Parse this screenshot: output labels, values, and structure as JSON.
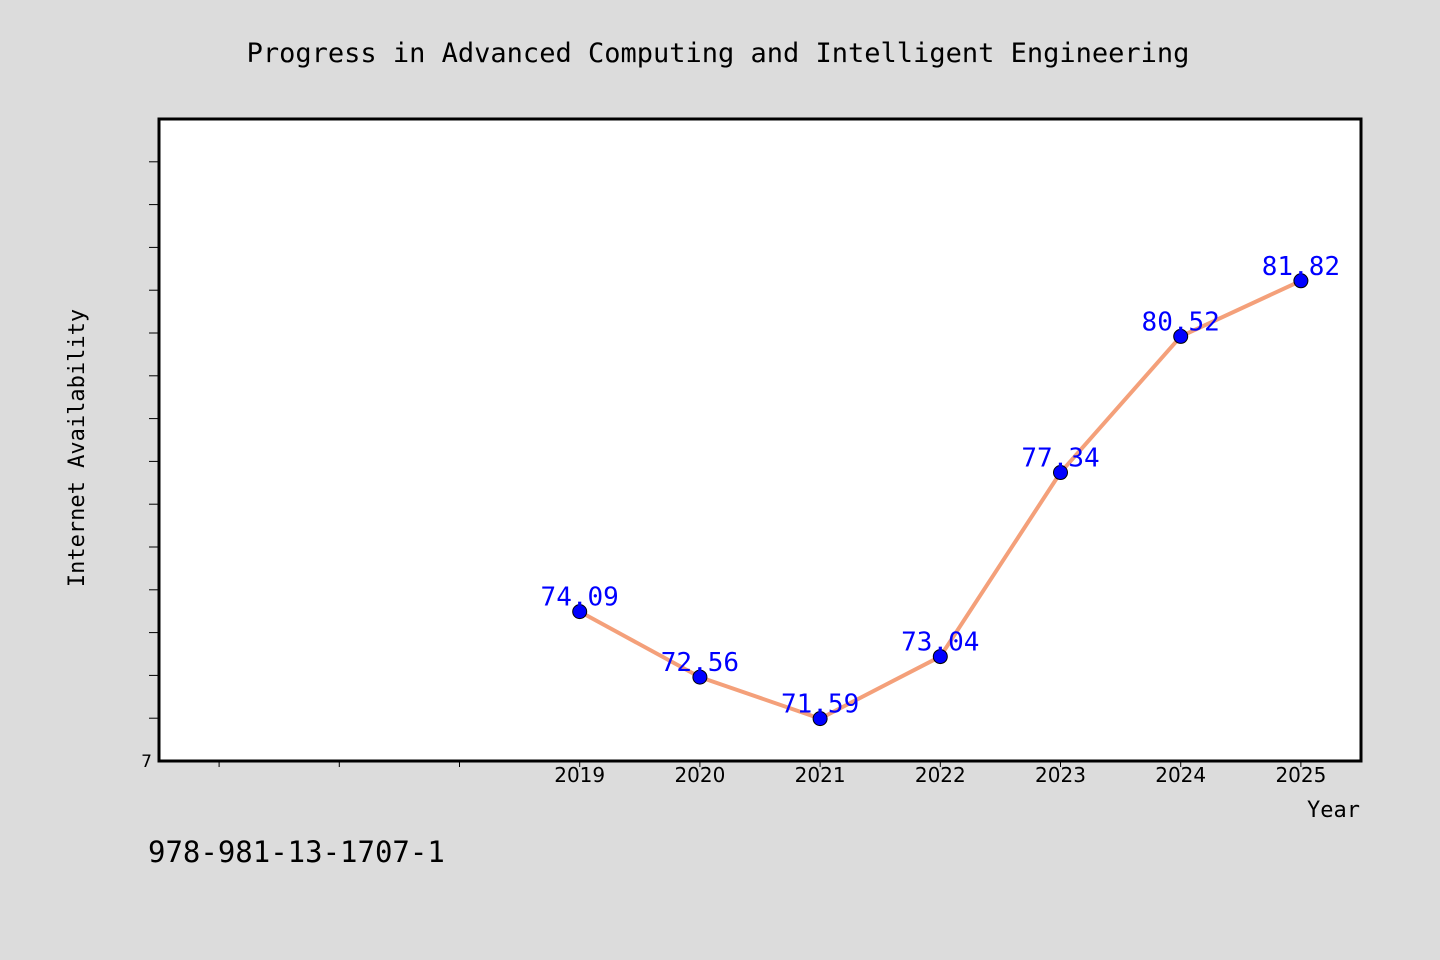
{
  "chart_data": {
    "type": "line",
    "title": "Progress in Advanced Computing and Intelligent Engineering",
    "xlabel": "Year",
    "ylabel": "Internet Availability",
    "x_ticks": [
      "2019",
      "2020",
      "2021",
      "2022",
      "2023",
      "2024",
      "2025"
    ],
    "y_tick_labels": [
      "7"
    ],
    "x": [
      2019,
      2020,
      2021,
      2022,
      2023,
      2024,
      2025
    ],
    "series": [
      {
        "values": [
          74.09,
          72.56,
          71.59,
          73.04,
          77.34,
          80.52,
          81.82
        ],
        "labels": [
          "74.09",
          "72.56",
          "71.59",
          "73.04",
          "77.34",
          "80.52",
          "81.82"
        ],
        "line_color": "#f4a07a",
        "marker_color": "#0000ff",
        "label_color": "#0000ff"
      }
    ],
    "xlim": [
      2015.5,
      2025.5
    ],
    "ylim": [
      70.6,
      85.6
    ],
    "grid": false,
    "legend": "none"
  },
  "footer": {
    "isbn": "978-981-13-1707-1"
  },
  "colors": {
    "background": "#dcdcdc",
    "plot_area": "#ffffff",
    "frame": "#000000"
  }
}
